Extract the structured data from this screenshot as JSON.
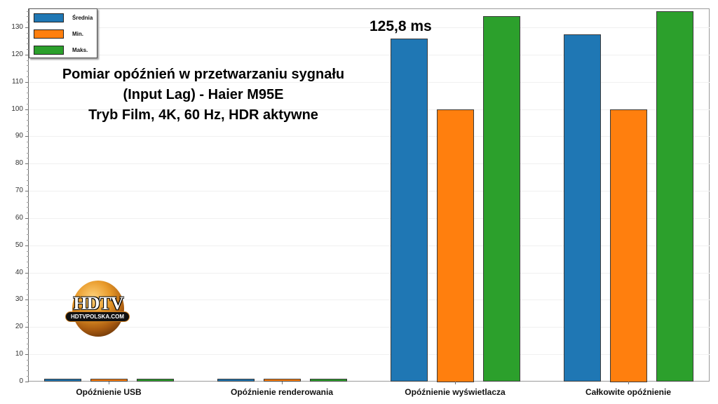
{
  "chart_data": {
    "type": "bar",
    "title": "Pomiar opóźnień w przetwarzaniu sygnału (Input Lag) - Haier M95E Tryb Film, 4K, 60 Hz, HDR aktywne",
    "title_lines": [
      "Pomiar opóźnień w przetwarzaniu sygnału",
      "(Input Lag) - Haier M95E",
      "Tryb Film, 4K, 60 Hz, HDR aktywne"
    ],
    "categories": [
      "Opóźnienie USB",
      "Opóźnienie renderowania",
      "Opóźnienie wyświetlacza",
      "Całkowite opóźnienie"
    ],
    "series": [
      {
        "name": "Średnia",
        "color": "#1f77b4",
        "values": [
          1,
          1,
          125.8,
          127.4
        ]
      },
      {
        "name": "Min.",
        "color": "#ff7f0e",
        "values": [
          1,
          1,
          100,
          100
        ]
      },
      {
        "name": "Maks.",
        "color": "#2ca02c",
        "values": [
          1,
          1,
          134,
          136
        ]
      }
    ],
    "xlabel": "",
    "ylabel": "",
    "ylim": [
      0,
      137
    ],
    "yticks": [
      0,
      10,
      20,
      30,
      40,
      50,
      60,
      70,
      80,
      90,
      100,
      110,
      120,
      130
    ],
    "grid": true,
    "legend_position": "upper left",
    "annotations": [
      {
        "text": "125,8 ms",
        "target": "Opóźnienie wyświetlacza / Średnia"
      }
    ]
  },
  "legend": {
    "items": [
      {
        "label": "Średnia",
        "color": "#1f77b4"
      },
      {
        "label": "Min.",
        "color": "#ff7f0e"
      },
      {
        "label": "Maks.",
        "color": "#2ca02c"
      }
    ]
  },
  "annotation_text": "125,8 ms",
  "logo": {
    "main": "HDTV",
    "sub": "HDTVPOLSKA.COM"
  }
}
